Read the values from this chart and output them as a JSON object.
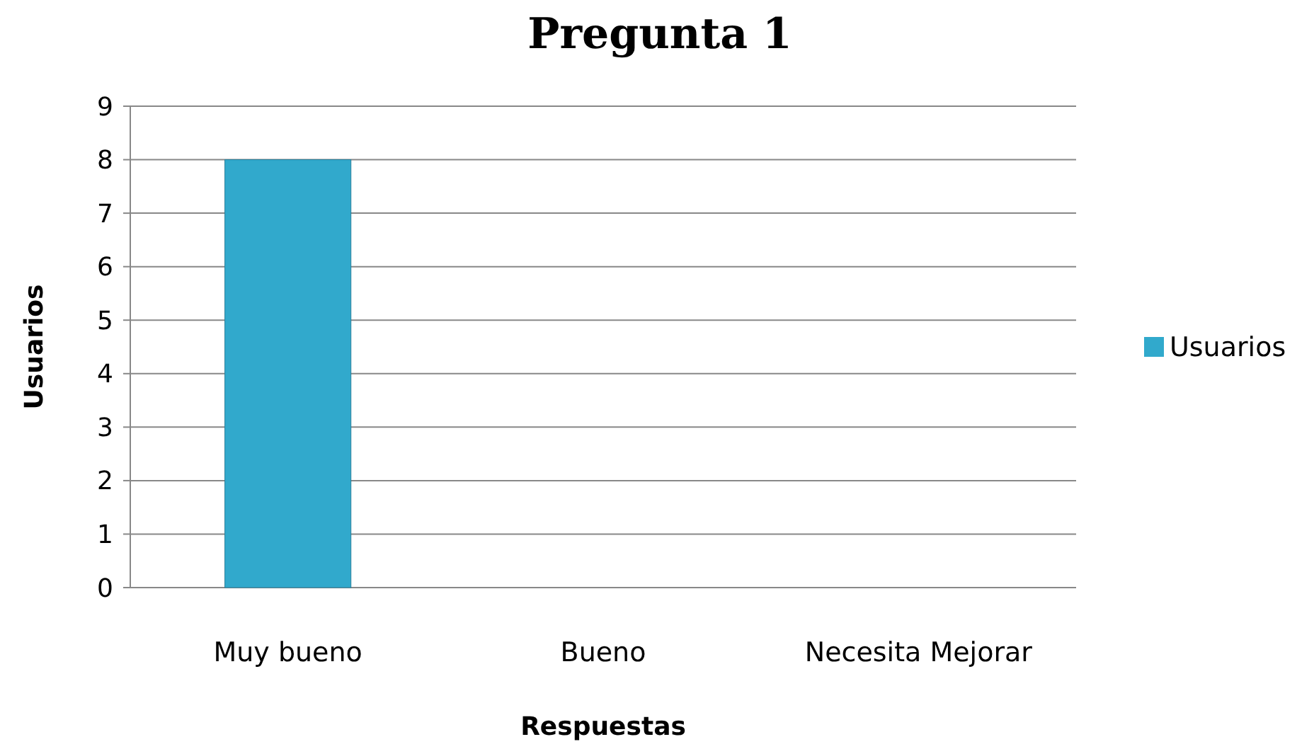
{
  "chart_data": {
    "type": "bar",
    "title": "Pregunta 1",
    "xlabel": "Respuestas",
    "ylabel": "Usuarios",
    "categories": [
      "Muy bueno",
      "Bueno",
      "Necesita Mejorar"
    ],
    "series": [
      {
        "name": "Usuarios",
        "color": "#31a9cc",
        "values": [
          8,
          0,
          0
        ]
      }
    ],
    "ylim": [
      0,
      9
    ],
    "yticks": [
      0,
      1,
      2,
      3,
      4,
      5,
      6,
      7,
      8,
      9
    ],
    "grid": "y",
    "legend": "right"
  }
}
